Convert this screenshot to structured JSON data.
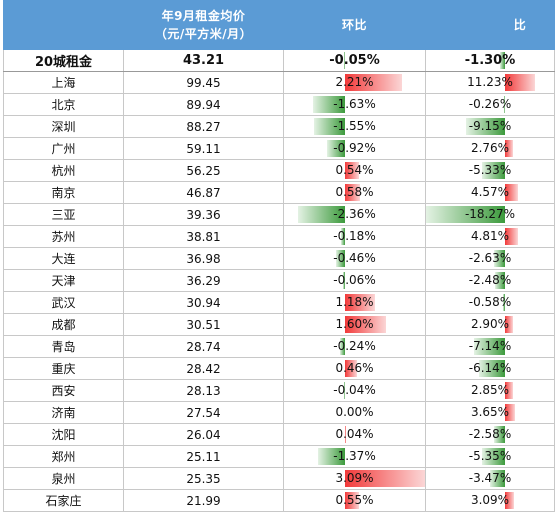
{
  "header": {
    "col_city": "",
    "col_price_line1": "年9月租金均价",
    "col_price_line2": "（元/平方米/月）",
    "col_mom": "环比",
    "col_yoy": "比"
  },
  "colors": {
    "header_bg": "#5b9bd5",
    "positive_bar": "#f23a3a",
    "negative_bar": "#3c9a3c"
  },
  "summary": {
    "city": "20城租金",
    "price": "43.21",
    "mom": "-0.05%",
    "yoy": "-1.30%",
    "mom_value": -0.05,
    "yoy_value": -1.3
  },
  "rows": [
    {
      "city": "上海",
      "price": "99.45",
      "mom": "2.21%",
      "yoy": "11.23%",
      "mom_value": 2.21,
      "yoy_value": 11.23
    },
    {
      "city": "北京",
      "price": "89.94",
      "mom": "-1.63%",
      "yoy": "-0.26%",
      "mom_value": -1.63,
      "yoy_value": -0.26
    },
    {
      "city": "深圳",
      "price": "88.27",
      "mom": "-1.55%",
      "yoy": "-9.15%",
      "mom_value": -1.55,
      "yoy_value": -9.15
    },
    {
      "city": "广州",
      "price": "59.11",
      "mom": "-0.92%",
      "yoy": "2.76%",
      "mom_value": -0.92,
      "yoy_value": 2.76
    },
    {
      "city": "杭州",
      "price": "56.25",
      "mom": "0.54%",
      "yoy": "-5.33%",
      "mom_value": 0.54,
      "yoy_value": -5.33
    },
    {
      "city": "南京",
      "price": "46.87",
      "mom": "0.58%",
      "yoy": "4.57%",
      "mom_value": 0.58,
      "yoy_value": 4.57
    },
    {
      "city": "三亚",
      "price": "39.36",
      "mom": "-2.36%",
      "yoy": "-18.27%",
      "mom_value": -2.36,
      "yoy_value": -18.27
    },
    {
      "city": "苏州",
      "price": "38.81",
      "mom": "-0.18%",
      "yoy": "4.81%",
      "mom_value": -0.18,
      "yoy_value": 4.81
    },
    {
      "city": "大连",
      "price": "36.98",
      "mom": "-0.46%",
      "yoy": "-2.63%",
      "mom_value": -0.46,
      "yoy_value": -2.63
    },
    {
      "city": "天津",
      "price": "36.29",
      "mom": "-0.06%",
      "yoy": "-2.48%",
      "mom_value": -0.06,
      "yoy_value": -2.48
    },
    {
      "city": "武汉",
      "price": "30.94",
      "mom": "1.18%",
      "yoy": "-0.58%",
      "mom_value": 1.18,
      "yoy_value": -0.58
    },
    {
      "city": "成都",
      "price": "30.51",
      "mom": "1.60%",
      "yoy": "2.90%",
      "mom_value": 1.6,
      "yoy_value": 2.9
    },
    {
      "city": "青岛",
      "price": "28.74",
      "mom": "-0.24%",
      "yoy": "-7.14%",
      "mom_value": -0.24,
      "yoy_value": -7.14
    },
    {
      "city": "重庆",
      "price": "28.42",
      "mom": "0.46%",
      "yoy": "-6.14%",
      "mom_value": 0.46,
      "yoy_value": -6.14
    },
    {
      "city": "西安",
      "price": "28.13",
      "mom": "-0.04%",
      "yoy": "2.85%",
      "mom_value": -0.04,
      "yoy_value": 2.85
    },
    {
      "city": "济南",
      "price": "27.54",
      "mom": "0.00%",
      "yoy": "3.65%",
      "mom_value": 0.0,
      "yoy_value": 3.65
    },
    {
      "city": "沈阳",
      "price": "26.04",
      "mom": "0.04%",
      "yoy": "-2.58%",
      "mom_value": 0.04,
      "yoy_value": -2.58
    },
    {
      "city": "郑州",
      "price": "25.11",
      "mom": "-1.37%",
      "yoy": "-5.35%",
      "mom_value": -1.37,
      "yoy_value": -5.35
    },
    {
      "city": "泉州",
      "price": "25.35",
      "mom": "3.09%",
      "yoy": "-3.47%",
      "mom_value": 3.09,
      "yoy_value": -3.47
    },
    {
      "city": "石家庄",
      "price": "21.99",
      "mom": "0.55%",
      "yoy": "3.09%",
      "mom_value": 0.55,
      "yoy_value": 3.09
    }
  ]
}
